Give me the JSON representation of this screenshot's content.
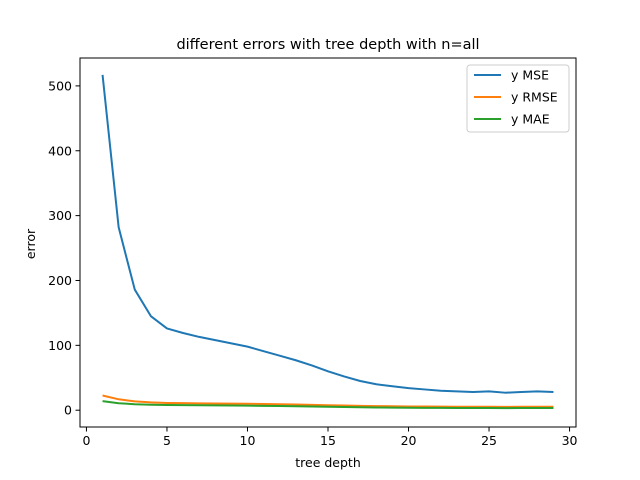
{
  "chart_data": {
    "type": "line",
    "title": "different errors with tree depth with n=all",
    "xlabel": "tree depth",
    "ylabel": "error",
    "xlim": [
      -0.4,
      30.4
    ],
    "ylim": [
      -25.9,
      543
    ],
    "xticks": [
      0,
      5,
      10,
      15,
      20,
      25,
      30
    ],
    "yticks": [
      0,
      100,
      200,
      300,
      400,
      500
    ],
    "grid": false,
    "legend_position": "top-right",
    "x": [
      1,
      2,
      3,
      4,
      5,
      6,
      7,
      8,
      9,
      10,
      11,
      12,
      13,
      14,
      15,
      16,
      17,
      18,
      19,
      20,
      21,
      22,
      23,
      24,
      25,
      26,
      27,
      28,
      29
    ],
    "series": [
      {
        "name": "y MSE",
        "color": "#1f77b4",
        "values": [
          517,
          282,
          186,
          145,
          126,
          119,
          113,
          108,
          103,
          98,
          91,
          84,
          77,
          69,
          60,
          52,
          45,
          40,
          37,
          34,
          32,
          30,
          29,
          28,
          29,
          27,
          28,
          29,
          28
        ]
      },
      {
        "name": "y RMSE",
        "color": "#ff7f0e",
        "values": [
          22.7,
          16.8,
          13.6,
          12.0,
          11.2,
          10.9,
          10.6,
          10.4,
          10.1,
          9.9,
          9.5,
          9.2,
          8.8,
          8.3,
          7.7,
          7.2,
          6.7,
          6.3,
          6.1,
          5.8,
          5.7,
          5.5,
          5.4,
          5.3,
          5.4,
          5.2,
          5.3,
          5.4,
          5.3
        ]
      },
      {
        "name": "y MAE",
        "color": "#2ca02c",
        "values": [
          14.0,
          10.8,
          9.2,
          8.5,
          8.0,
          7.8,
          7.6,
          7.4,
          7.2,
          7.0,
          6.7,
          6.4,
          6.1,
          5.7,
          5.3,
          4.9,
          4.5,
          4.2,
          4.0,
          3.8,
          3.6,
          3.5,
          3.4,
          3.3,
          3.4,
          3.2,
          3.3,
          3.4,
          3.3
        ]
      }
    ]
  }
}
